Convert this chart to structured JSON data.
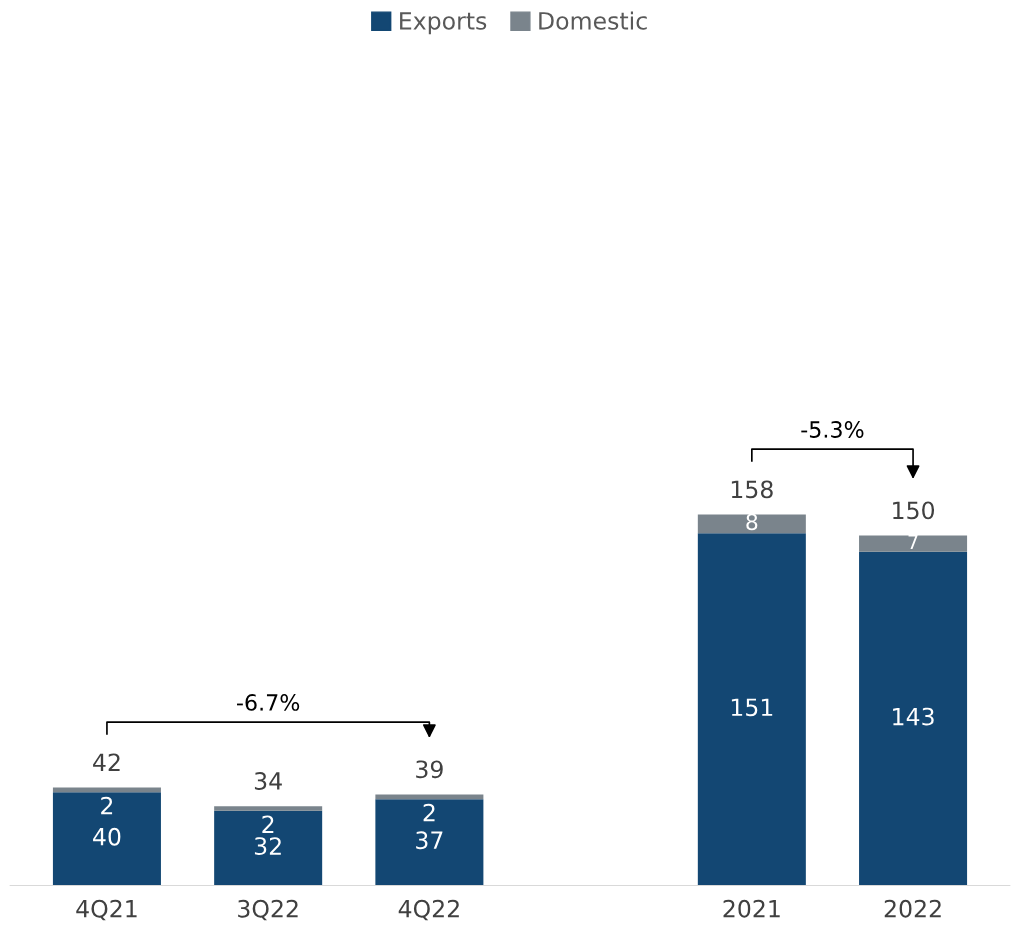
{
  "chart_data": {
    "type": "bar",
    "stacked": true,
    "categories": [
      "4Q21",
      "3Q22",
      "4Q22",
      null,
      "2021",
      "2022"
    ],
    "series": [
      {
        "name": "Exports",
        "color": "#134773",
        "values": [
          40,
          32,
          37,
          null,
          151,
          143
        ]
      },
      {
        "name": "Domestic",
        "color": "#7a848c",
        "values": [
          2,
          2,
          2,
          null,
          8,
          7
        ]
      }
    ],
    "data_labels": true,
    "totals": [
      "42",
      "34",
      "39",
      null,
      "158",
      "150"
    ],
    "annotations": [
      "-6.7%",
      "-5.3%"
    ],
    "tick_labels": "x",
    "legend": "top",
    "grid": false
  }
}
